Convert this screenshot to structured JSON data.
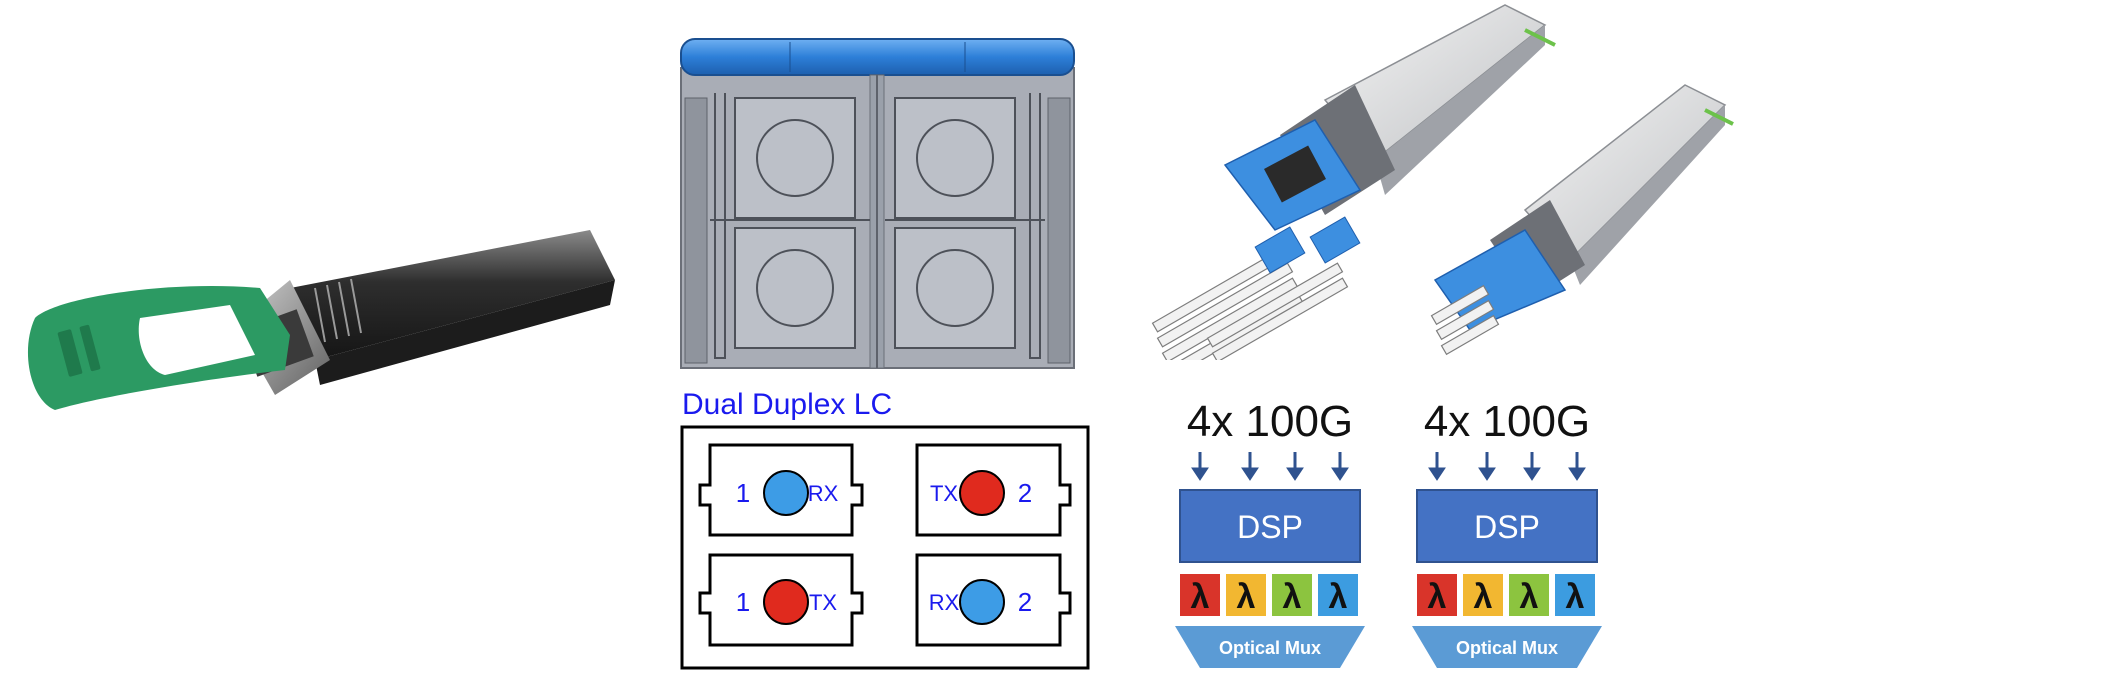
{
  "diagram": {
    "title": "Dual Duplex LC",
    "ports": [
      {
        "number": "1",
        "label": "RX",
        "color": "#3d9ce6"
      },
      {
        "number": "2",
        "label": "TX",
        "color": "#e02a1e"
      },
      {
        "number": "1",
        "label": "TX",
        "color": "#e02a1e"
      },
      {
        "number": "2",
        "label": "RX",
        "color": "#3d9ce6"
      }
    ]
  },
  "modules": [
    {
      "heading": "4x 100G",
      "dsp_label": "DSP",
      "lambda_symbol": "λ",
      "lambda_colors": [
        "#d9342a",
        "#f2b731",
        "#8cc43f",
        "#3c9ce0"
      ],
      "mux_label": "Optical Mux"
    },
    {
      "heading": "4x 100G",
      "dsp_label": "DSP",
      "lambda_symbol": "λ",
      "lambda_colors": [
        "#d9342a",
        "#f2b731",
        "#8cc43f",
        "#3c9ce0"
      ],
      "mux_label": "Optical Mux"
    }
  ],
  "colors": {
    "dsp_box": "#4472c4",
    "mux": "#5b9bd5",
    "arrow": "#2f528f",
    "text_blue": "#1a1aee",
    "transceiver_tab": "#2c9a63",
    "connector_blue": "#3d8fe0"
  }
}
